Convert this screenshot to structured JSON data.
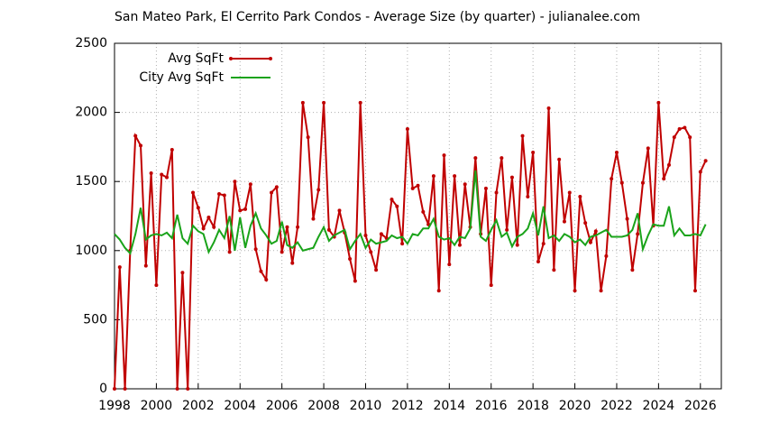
{
  "chart_data": {
    "type": "line",
    "title": "San Mateo Park, El Cerrito Park Condos - Average Size (by quarter) - julianalee.com",
    "x": [
      1998,
      1998.25,
      1998.5,
      1998.75,
      1999,
      1999.25,
      1999.5,
      1999.75,
      2000,
      2000.25,
      2000.5,
      2000.75,
      2001,
      2001.25,
      2001.5,
      2001.75,
      2002,
      2002.25,
      2002.5,
      2002.75,
      2003,
      2003.25,
      2003.5,
      2003.75,
      2004,
      2004.25,
      2004.5,
      2004.75,
      2005,
      2005.25,
      2005.5,
      2005.75,
      2006,
      2006.25,
      2006.5,
      2006.75,
      2007,
      2007.25,
      2007.5,
      2007.75,
      2008,
      2008.25,
      2008.5,
      2008.75,
      2009,
      2009.25,
      2009.5,
      2009.75,
      2010,
      2010.25,
      2010.5,
      2010.75,
      2011,
      2011.25,
      2011.5,
      2011.75,
      2012,
      2012.25,
      2012.5,
      2012.75,
      2013,
      2013.25,
      2013.5,
      2013.75,
      2014,
      2014.25,
      2014.5,
      2014.75,
      2015,
      2015.25,
      2015.5,
      2015.75,
      2016,
      2016.25,
      2016.5,
      2016.75,
      2017,
      2017.25,
      2017.5,
      2017.75,
      2018,
      2018.25,
      2018.5,
      2018.75,
      2019,
      2019.25,
      2019.5,
      2019.75,
      2020,
      2020.25,
      2020.5,
      2020.75,
      2021,
      2021.25,
      2021.5,
      2021.75,
      2022,
      2022.25,
      2022.5,
      2022.75,
      2023,
      2023.25,
      2023.5,
      2023.75,
      2024,
      2024.25,
      2024.5,
      2024.75,
      2025,
      2025.25,
      2025.5,
      2025.75,
      2026,
      2026.25
    ],
    "series": [
      {
        "name": "Avg SqFt",
        "color": "#c00000",
        "markers": true,
        "values": [
          0,
          880,
          0,
          1000,
          1830,
          1760,
          890,
          1560,
          750,
          1550,
          1530,
          1730,
          0,
          840,
          0,
          1420,
          1310,
          1160,
          1240,
          1170,
          1410,
          1400,
          990,
          1500,
          1290,
          1300,
          1480,
          1010,
          850,
          790,
          1420,
          1460,
          990,
          1170,
          910,
          1170,
          2070,
          1820,
          1230,
          1440,
          2070,
          1150,
          1100,
          1290,
          1130,
          940,
          780,
          2070,
          1110,
          990,
          860,
          1120,
          1090,
          1370,
          1320,
          1050,
          1880,
          1450,
          1470,
          1280,
          1190,
          1540,
          710,
          1690,
          900,
          1540,
          1040,
          1480,
          1170,
          1670,
          1120,
          1450,
          750,
          1420,
          1670,
          1150,
          1530,
          1040,
          1830,
          1390,
          1710,
          920,
          1050,
          2030,
          860,
          1660,
          1210,
          1420,
          710,
          1390,
          1200,
          1060,
          1140,
          710,
          960,
          1520,
          1710,
          1490,
          1230,
          860,
          1120,
          1490,
          1740,
          1180,
          2070,
          1520,
          1620,
          1820,
          1880,
          1890,
          1820,
          710,
          1570,
          1650
        ]
      },
      {
        "name": "City Avg SqFt",
        "color": "#1aa31a",
        "markers": false,
        "values": [
          1120,
          1080,
          1020,
          980,
          1120,
          1310,
          1080,
          1110,
          1120,
          1110,
          1130,
          1090,
          1260,
          1090,
          1050,
          1180,
          1140,
          1120,
          990,
          1060,
          1150,
          1090,
          1250,
          1000,
          1240,
          1020,
          1180,
          1270,
          1160,
          1110,
          1050,
          1070,
          1210,
          1040,
          1020,
          1060,
          1000,
          1010,
          1020,
          1100,
          1170,
          1070,
          1110,
          1130,
          1150,
          1010,
          1070,
          1120,
          1020,
          1080,
          1050,
          1060,
          1070,
          1110,
          1090,
          1100,
          1050,
          1120,
          1110,
          1160,
          1160,
          1230,
          1100,
          1080,
          1090,
          1040,
          1100,
          1090,
          1160,
          1580,
          1100,
          1070,
          1150,
          1220,
          1100,
          1130,
          1030,
          1100,
          1120,
          1160,
          1270,
          1110,
          1320,
          1090,
          1110,
          1070,
          1120,
          1100,
          1060,
          1080,
          1040,
          1100,
          1110,
          1130,
          1150,
          1100,
          1100,
          1100,
          1110,
          1150,
          1270,
          1010,
          1110,
          1190,
          1180,
          1180,
          1320,
          1110,
          1160,
          1110,
          1110,
          1120,
          1110,
          1190
        ]
      }
    ],
    "xlim": [
      1998,
      2027
    ],
    "xticks": [
      1998,
      2000,
      2002,
      2004,
      2006,
      2008,
      2010,
      2012,
      2014,
      2016,
      2018,
      2020,
      2022,
      2024,
      2026
    ],
    "ylim": [
      0,
      2500
    ],
    "yticks": [
      0,
      500,
      1000,
      1500,
      2000,
      2500
    ],
    "grid": true,
    "legend": "top-left"
  }
}
